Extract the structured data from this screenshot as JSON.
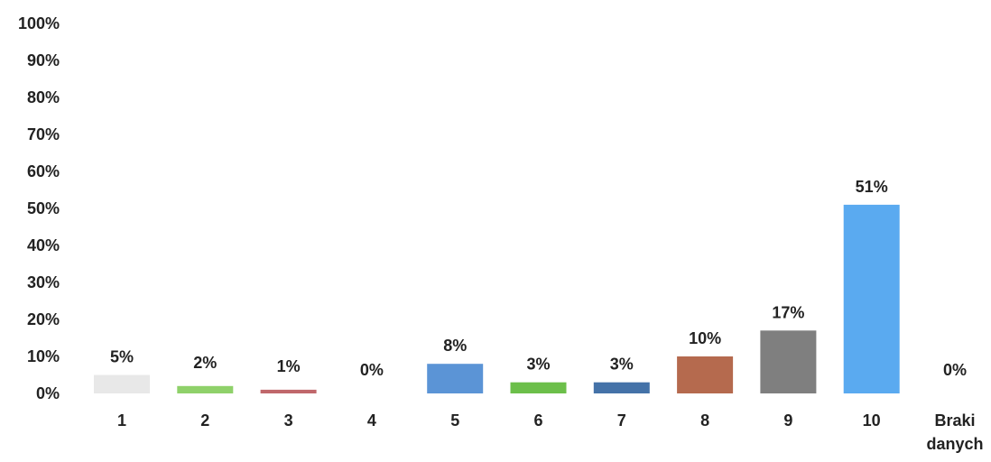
{
  "chart_data": {
    "type": "bar",
    "categories": [
      "1",
      "2",
      "3",
      "4",
      "5",
      "6",
      "7",
      "8",
      "9",
      "10",
      "Braki\ndanych"
    ],
    "values": [
      5,
      2,
      1,
      0,
      8,
      3,
      3,
      10,
      17,
      51,
      0
    ],
    "data_labels": [
      "5%",
      "2%",
      "1%",
      "0%",
      "8%",
      "3%",
      "3%",
      "10%",
      "17%",
      "51%",
      "0%"
    ],
    "bar_colors": [
      "#e8e8e8",
      "#8fd16a",
      "#c0676b",
      "#ffffff",
      "#5b94d6",
      "#6cbf4a",
      "#4472a8",
      "#b56a4e",
      "#7f7f7f",
      "#5aaaf0",
      "#ffffff"
    ],
    "y_ticks": [
      "0%",
      "10%",
      "20%",
      "30%",
      "40%",
      "50%",
      "60%",
      "70%",
      "80%",
      "90%",
      "100%"
    ],
    "ylim": [
      0,
      100
    ],
    "title": "",
    "xlabel": "",
    "ylabel": "",
    "grid": false,
    "legend": "none"
  }
}
